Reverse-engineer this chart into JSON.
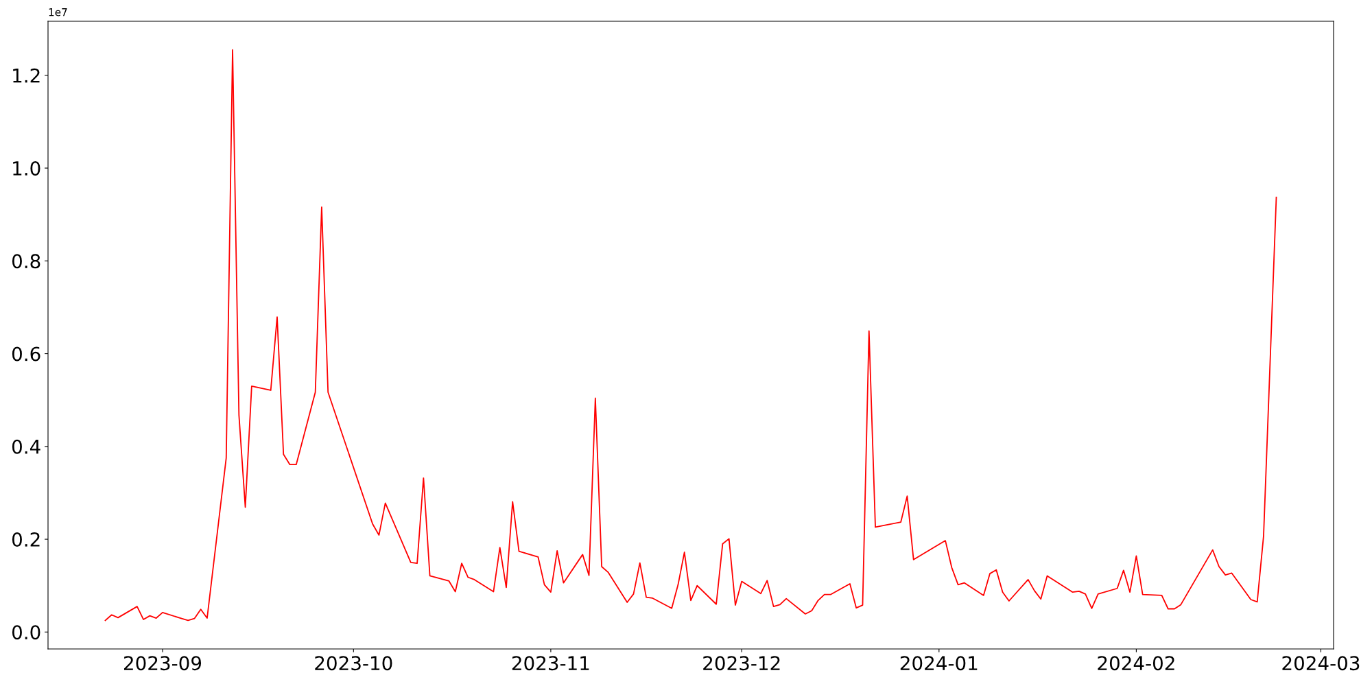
{
  "chart_data": {
    "type": "line",
    "annotations": [
      "1e7"
    ],
    "x": [
      "2023-08-23",
      "2023-08-24",
      "2023-08-25",
      "2023-08-28",
      "2023-08-29",
      "2023-08-30",
      "2023-08-31",
      "2023-09-01",
      "2023-09-04",
      "2023-09-05",
      "2023-09-06",
      "2023-09-07",
      "2023-09-08",
      "2023-09-11",
      "2023-09-12",
      "2023-09-13",
      "2023-09-14",
      "2023-09-15",
      "2023-09-18",
      "2023-09-19",
      "2023-09-20",
      "2023-09-21",
      "2023-09-22",
      "2023-09-25",
      "2023-09-26",
      "2023-09-27",
      "2023-10-04",
      "2023-10-05",
      "2023-10-06",
      "2023-10-10",
      "2023-10-11",
      "2023-10-12",
      "2023-10-13",
      "2023-10-16",
      "2023-10-17",
      "2023-10-18",
      "2023-10-19",
      "2023-10-20",
      "2023-10-23",
      "2023-10-24",
      "2023-10-25",
      "2023-10-26",
      "2023-10-27",
      "2023-10-30",
      "2023-10-31",
      "2023-11-01",
      "2023-11-02",
      "2023-11-03",
      "2023-11-06",
      "2023-11-07",
      "2023-11-08",
      "2023-11-09",
      "2023-11-10",
      "2023-11-13",
      "2023-11-14",
      "2023-11-15",
      "2023-11-16",
      "2023-11-17",
      "2023-11-20",
      "2023-11-21",
      "2023-11-22",
      "2023-11-23",
      "2023-11-24",
      "2023-11-27",
      "2023-11-28",
      "2023-11-29",
      "2023-11-30",
      "2023-12-01",
      "2023-12-04",
      "2023-12-05",
      "2023-12-06",
      "2023-12-07",
      "2023-12-08",
      "2023-12-11",
      "2023-12-12",
      "2023-12-13",
      "2023-12-14",
      "2023-12-15",
      "2023-12-18",
      "2023-12-19",
      "2023-12-20",
      "2023-12-21",
      "2023-12-22",
      "2023-12-26",
      "2023-12-27",
      "2023-12-28",
      "2024-01-02",
      "2024-01-03",
      "2024-01-04",
      "2024-01-05",
      "2024-01-08",
      "2024-01-09",
      "2024-01-10",
      "2024-01-11",
      "2024-01-12",
      "2024-01-15",
      "2024-01-16",
      "2024-01-17",
      "2024-01-18",
      "2024-01-22",
      "2024-01-23",
      "2024-01-24",
      "2024-01-25",
      "2024-01-26",
      "2024-01-29",
      "2024-01-30",
      "2024-01-31",
      "2024-02-01",
      "2024-02-02",
      "2024-02-05",
      "2024-02-06",
      "2024-02-07",
      "2024-02-08",
      "2024-02-13",
      "2024-02-14",
      "2024-02-15",
      "2024-02-16",
      "2024-02-19",
      "2024-02-20",
      "2024-02-21",
      "2024-02-23"
    ],
    "series": [
      {
        "color": "#ff0000",
        "values": [
          0.025,
          0.037,
          0.031,
          0.055,
          0.027,
          0.035,
          0.03,
          0.042,
          0.029,
          0.025,
          0.029,
          0.049,
          0.03,
          0.375,
          1.255,
          0.468,
          0.269,
          0.53,
          0.521,
          0.679,
          0.383,
          0.361,
          0.361,
          0.517,
          0.916,
          0.517,
          0.233,
          0.209,
          0.278,
          0.15,
          0.148,
          0.332,
          0.121,
          0.11,
          0.087,
          0.148,
          0.118,
          0.113,
          0.087,
          0.182,
          0.096,
          0.281,
          0.174,
          0.162,
          0.102,
          0.086,
          0.175,
          0.106,
          0.167,
          0.122,
          0.504,
          0.141,
          0.129,
          0.064,
          0.082,
          0.149,
          0.075,
          0.073,
          0.051,
          0.102,
          0.172,
          0.068,
          0.1,
          0.06,
          0.19,
          0.201,
          0.058,
          0.109,
          0.083,
          0.111,
          0.055,
          0.059,
          0.072,
          0.039,
          0.046,
          0.068,
          0.081,
          0.081,
          0.104,
          0.052,
          0.058,
          0.649,
          0.226,
          0.237,
          0.293,
          0.156,
          0.197,
          0.139,
          0.102,
          0.106,
          0.079,
          0.126,
          0.134,
          0.086,
          0.067,
          0.113,
          0.089,
          0.071,
          0.121,
          0.086,
          0.088,
          0.082,
          0.051,
          0.082,
          0.094,
          0.133,
          0.086,
          0.164,
          0.081,
          0.079,
          0.05,
          0.05,
          0.059,
          0.177,
          0.141,
          0.123,
          0.127,
          0.07,
          0.065,
          0.207,
          0.937
        ]
      }
    ],
    "xlim": [
      "2023-08-14",
      "2024-03-03"
    ],
    "ylim": [
      -0.0365,
      1.3165
    ],
    "xticks": [
      "2023-09",
      "2023-10",
      "2023-11",
      "2023-12",
      "2024-01",
      "2024-02",
      "2024-03"
    ],
    "yticks": [
      {
        "value": 0,
        "label": "0.0"
      },
      0.2,
      0.4,
      0.6,
      0.8,
      {
        "value": 1,
        "label": "1.0"
      },
      1.2
    ],
    "grid": false,
    "legend": false
  }
}
